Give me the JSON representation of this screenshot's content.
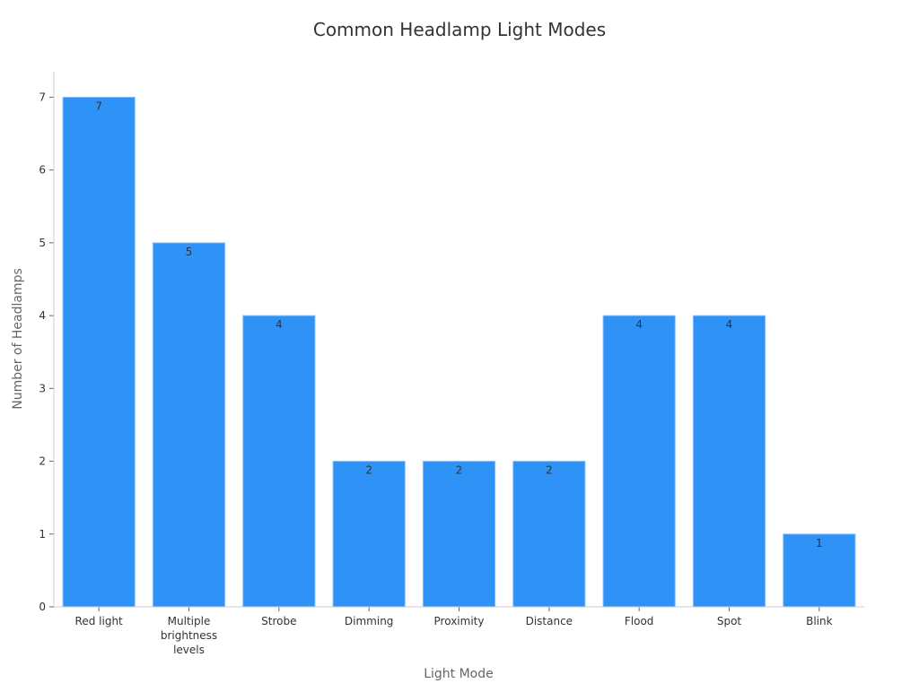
{
  "chart_data": {
    "type": "bar",
    "title": "Common Headlamp Light Modes",
    "xlabel": "Light Mode",
    "ylabel": "Number of Headlamps",
    "categories": [
      "Red light",
      "Multiple brightness levels",
      "Strobe",
      "Dimming",
      "Proximity",
      "Distance",
      "Flood",
      "Spot",
      "Blink"
    ],
    "category_lines": [
      [
        "Red light"
      ],
      [
        "Multiple",
        "brightness",
        "levels"
      ],
      [
        "Strobe"
      ],
      [
        "Dimming"
      ],
      [
        "Proximity"
      ],
      [
        "Distance"
      ],
      [
        "Flood"
      ],
      [
        "Spot"
      ],
      [
        "Blink"
      ]
    ],
    "values": [
      7,
      5,
      4,
      2,
      2,
      2,
      4,
      4,
      1
    ],
    "yticks": [
      0,
      1,
      2,
      3,
      4,
      5,
      6,
      7
    ],
    "ylim": [
      0,
      7.35
    ],
    "grid": false,
    "data_labels": true,
    "colors": {
      "bar": "#2f92f7",
      "bar_edge": "#8cc3fb",
      "axis": "#cccccc",
      "text": "#333333",
      "label": "#666666"
    }
  }
}
